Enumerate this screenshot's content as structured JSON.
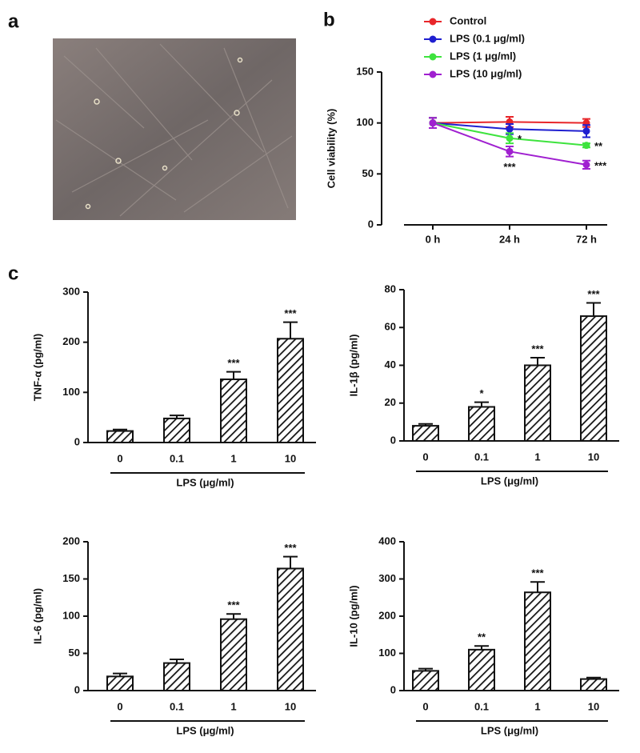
{
  "panel_labels": [
    "a",
    "b",
    "c"
  ],
  "chart_data": [
    {
      "type": "line",
      "y_label": "Cell viability (%)",
      "categories": [
        "0 h",
        "24 h",
        "72 h"
      ],
      "ylim": [
        0,
        150
      ],
      "yticks": [
        0,
        50,
        100,
        150
      ],
      "legend": "top",
      "series": [
        {
          "name": "Control",
          "color": "#e8262a",
          "values": [
            100,
            101,
            100
          ],
          "errors": [
            5,
            5,
            4
          ],
          "annotations": [
            null,
            null,
            null
          ]
        },
        {
          "name": "LPS (0.1 μg/ml)",
          "color": "#1f1fd0",
          "values": [
            100,
            94,
            92
          ],
          "errors": [
            5,
            5,
            6
          ],
          "annotations": [
            null,
            null,
            null
          ]
        },
        {
          "name": "LPS (1 μg/ml)",
          "color": "#3ee33e",
          "values": [
            100,
            85,
            78
          ],
          "errors": [
            5,
            5,
            2
          ],
          "annotations": [
            null,
            "*",
            "**"
          ]
        },
        {
          "name": "LPS (10 μg/ml)",
          "color": "#a020d0",
          "values": [
            100,
            72,
            59
          ],
          "errors": [
            5,
            5,
            4
          ],
          "annotations": [
            null,
            "***",
            "***"
          ]
        }
      ]
    },
    {
      "type": "bar",
      "y_label": "TNF-α (pg/ml)",
      "x_label": "LPS (μg/ml)",
      "categories": [
        "0",
        "0.1",
        "1",
        "10"
      ],
      "values": [
        23,
        48,
        126,
        207
      ],
      "errors": [
        3,
        6,
        15,
        33
      ],
      "annotations": [
        null,
        null,
        "***",
        "***"
      ],
      "ylim": [
        0,
        300
      ],
      "yticks": [
        0,
        100,
        200,
        300
      ]
    },
    {
      "type": "bar",
      "y_label": "IL-1β (pg/ml)",
      "x_label": "LPS (μg/ml)",
      "categories": [
        "0",
        "0.1",
        "1",
        "10"
      ],
      "values": [
        8,
        18,
        40,
        66
      ],
      "errors": [
        1,
        2.5,
        4,
        7
      ],
      "annotations": [
        null,
        "*",
        "***",
        "***"
      ],
      "ylim": [
        0,
        80
      ],
      "yticks": [
        0,
        20,
        40,
        60,
        80
      ]
    },
    {
      "type": "bar",
      "y_label": "IL-6 (pg/ml)",
      "x_label": "LPS (μg/ml)",
      "categories": [
        "0",
        "0.1",
        "1",
        "10"
      ],
      "values": [
        19,
        37,
        96,
        164
      ],
      "errors": [
        4,
        5,
        7,
        16
      ],
      "annotations": [
        null,
        null,
        "***",
        "***"
      ],
      "ylim": [
        0,
        200
      ],
      "yticks": [
        0,
        50,
        100,
        150,
        200
      ]
    },
    {
      "type": "bar",
      "y_label": "IL-10 (pg/ml)",
      "x_label": "LPS (μg/ml)",
      "categories": [
        "0",
        "0.1",
        "1",
        "10"
      ],
      "values": [
        53,
        110,
        264,
        31
      ],
      "errors": [
        6,
        10,
        28,
        4
      ],
      "annotations": [
        null,
        "**",
        "***",
        null
      ],
      "ylim": [
        0,
        400
      ],
      "yticks": [
        0,
        100,
        200,
        300,
        400
      ]
    }
  ]
}
